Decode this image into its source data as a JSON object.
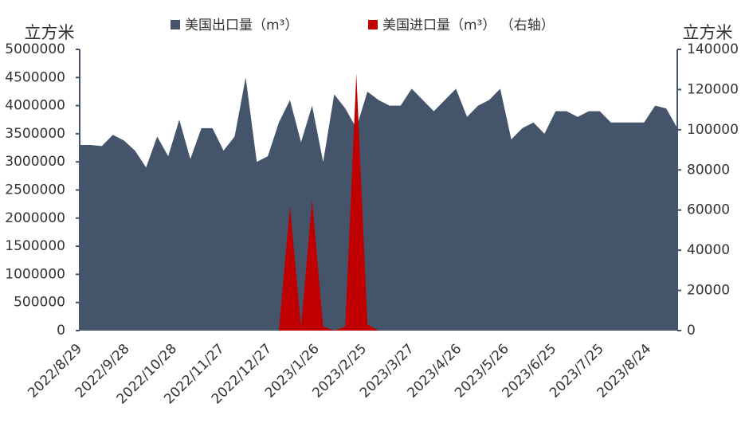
{
  "chart_data": {
    "type": "area",
    "y_label": "立方米",
    "y2_label": "立方米",
    "x": [
      "2022/8/29",
      "2022/9/5",
      "2022/9/12",
      "2022/9/19",
      "2022/9/26",
      "2022/10/3",
      "2022/10/10",
      "2022/10/17",
      "2022/10/24",
      "2022/10/31",
      "2022/11/7",
      "2022/11/14",
      "2022/11/21",
      "2022/11/28",
      "2022/12/5",
      "2022/12/12",
      "2022/12/19",
      "2022/12/26",
      "2023/1/2",
      "2023/1/9",
      "2023/1/16",
      "2023/1/23",
      "2023/1/30",
      "2023/2/6",
      "2023/2/13",
      "2023/2/20",
      "2023/2/27",
      "2023/3/6",
      "2023/3/13",
      "2023/3/20",
      "2023/3/27",
      "2023/4/3",
      "2023/4/10",
      "2023/4/17",
      "2023/4/24",
      "2023/5/1",
      "2023/5/8",
      "2023/5/15",
      "2023/5/22",
      "2023/5/29",
      "2023/6/5",
      "2023/6/12",
      "2023/6/19",
      "2023/6/26",
      "2023/7/3",
      "2023/7/10",
      "2023/7/17",
      "2023/7/24",
      "2023/7/31",
      "2023/8/7",
      "2023/8/14",
      "2023/8/21",
      "2023/8/28",
      "2023/9/4",
      "2023/9/11"
    ],
    "xlim": [
      "2022/8/29",
      "2023/9/11"
    ],
    "xticks": [
      "2022/8/29",
      "2022/9/28",
      "2022/10/28",
      "2022/11/27",
      "2022/12/27",
      "2023/1/26",
      "2023/2/25",
      "2023/3/27",
      "2023/4/26",
      "2023/5/26",
      "2023/6/25",
      "2023/7/25",
      "2023/8/24"
    ],
    "ylim": [
      0,
      5000000
    ],
    "yticks": [
      0,
      500000,
      1000000,
      1500000,
      2000000,
      2500000,
      3000000,
      3500000,
      4000000,
      4500000,
      5000000
    ],
    "y2lim": [
      0,
      140000
    ],
    "y2ticks": [
      0,
      20000,
      40000,
      60000,
      80000,
      100000,
      120000,
      140000
    ],
    "series": [
      {
        "name": "美国出口量（m³）",
        "color": "#44546a",
        "values": [
          3300000,
          3300000,
          3280000,
          3480000,
          3380000,
          3200000,
          2900000,
          3450000,
          3100000,
          3750000,
          3050000,
          3600000,
          3600000,
          3200000,
          3450000,
          4500000,
          3000000,
          3100000,
          3700000,
          4100000,
          3350000,
          4000000,
          3000000,
          4200000,
          3950000,
          3600000,
          4250000,
          4100000,
          4000000,
          4000000,
          4300000,
          4100000,
          3900000,
          4100000,
          4300000,
          3800000,
          4000000,
          4100000,
          4300000,
          3400000,
          3600000,
          3700000,
          3500000,
          3900000,
          3900000,
          3800000,
          3900000,
          3900000,
          3700000,
          3700000,
          3700000,
          3700000,
          4000000,
          3950000,
          3600000
        ]
      },
      {
        "name": "美国进口量（m³） （右轴）",
        "color": "#c00000",
        "axis": "y2",
        "values": [
          0,
          0,
          0,
          0,
          0,
          0,
          0,
          0,
          0,
          0,
          0,
          0,
          0,
          0,
          0,
          0,
          0,
          0,
          0,
          62000,
          2000,
          65000,
          2000,
          0,
          2000,
          128000,
          3000,
          0,
          0,
          0,
          0,
          0,
          0,
          0,
          0,
          0,
          0,
          0,
          0,
          0,
          0,
          0,
          0,
          0,
          0,
          0,
          0,
          0,
          0,
          0,
          0,
          0,
          0,
          0,
          0
        ]
      }
    ]
  }
}
